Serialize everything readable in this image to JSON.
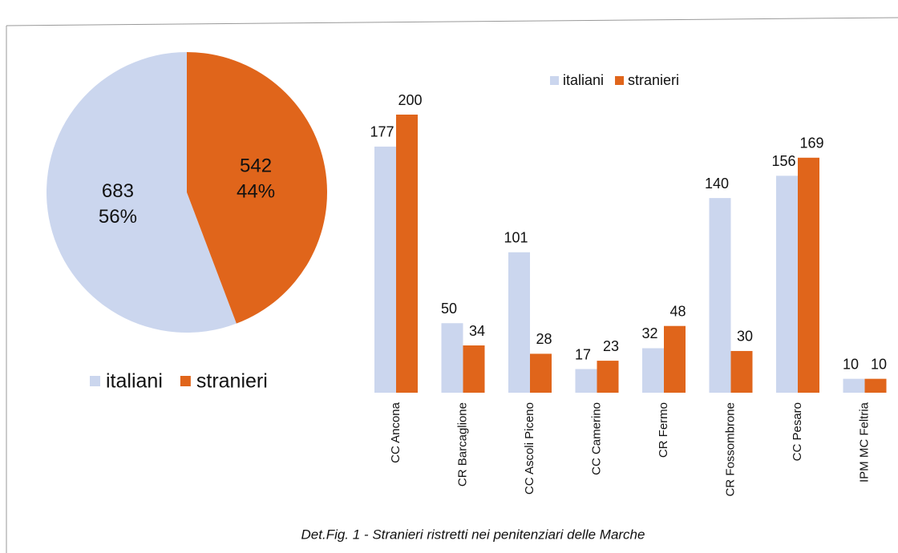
{
  "chart_data": [
    {
      "type": "pie",
      "categories": [
        "italiani",
        "stranieri"
      ],
      "values": [
        683,
        542
      ],
      "percent_labels": [
        "56%",
        "44%"
      ],
      "colors": [
        "#cbd6ee",
        "#e0651b"
      ]
    },
    {
      "type": "bar",
      "categories": [
        "CC Ancona",
        "CR Barcaglione",
        "CC Ascoli Piceno",
        "CC Camerino",
        "CR Fermo",
        "CR Fossombrone",
        "CC Pesaro",
        "IPM MC Feltria"
      ],
      "series": [
        {
          "name": "italiani",
          "color": "#cbd6ee",
          "values": [
            177,
            50,
            101,
            17,
            32,
            140,
            156,
            10
          ]
        },
        {
          "name": "stranieri",
          "color": "#e0651b",
          "values": [
            200,
            34,
            28,
            23,
            48,
            30,
            169,
            10
          ]
        }
      ]
    }
  ],
  "caption": "Det.Fig. 1 - Stranieri ristretti nei penitenziari delle Marche"
}
